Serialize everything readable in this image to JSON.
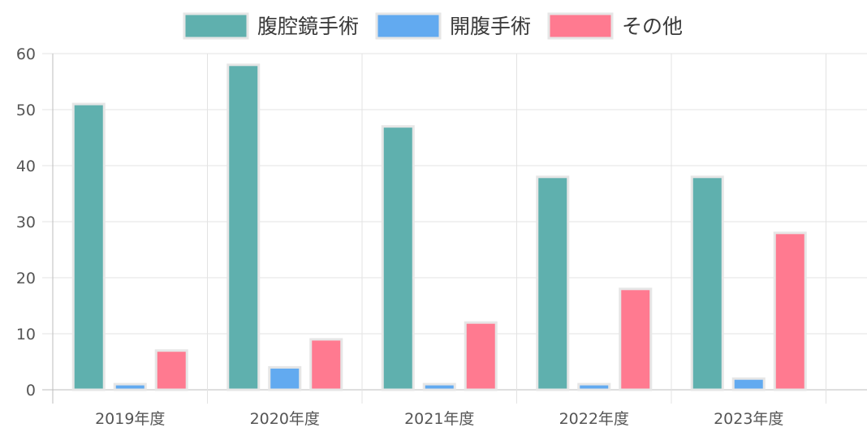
{
  "chart_data": {
    "type": "bar",
    "categories": [
      "2019年度",
      "2020年度",
      "2021年度",
      "2022年度",
      "2023年度"
    ],
    "series": [
      {
        "name": "腹腔鏡手術",
        "values": [
          51,
          58,
          47,
          38,
          38
        ],
        "color": "#5fb0ae"
      },
      {
        "name": "開腹手術",
        "values": [
          1,
          4,
          1,
          1,
          2
        ],
        "color": "#62aaf0"
      },
      {
        "name": "その他",
        "values": [
          7,
          9,
          12,
          18,
          28
        ],
        "color": "#ff7a90"
      }
    ],
    "ylim": [
      0,
      60
    ],
    "yticks": [
      0,
      10,
      20,
      30,
      40,
      50,
      60
    ],
    "grid": true,
    "legend_position": "top"
  }
}
